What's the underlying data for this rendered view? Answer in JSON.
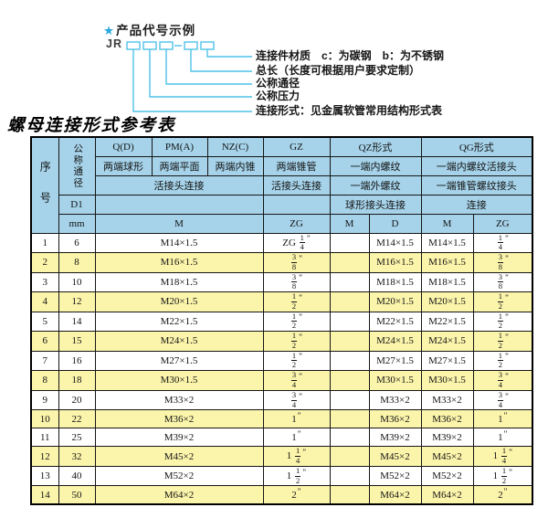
{
  "diagram": {
    "star": "★",
    "heading": "产品代号示例",
    "code_prefix": "JR",
    "labels": [
      "连接件材质　c：为碳钢　b：为不锈钢",
      "总长（长度可根据用户要求定制）",
      "公称通径",
      "公称压力",
      "连接形式：见金属软管常用结构形式表"
    ]
  },
  "table": {
    "title": "螺母连接形式参考表",
    "corner": {
      "row_label": "序号",
      "dn_label": "公称通径",
      "d1": "D1",
      "unit": "mm"
    },
    "groups": {
      "q": {
        "name": "Q(D)",
        "ends": "两端球形"
      },
      "pm": {
        "name": "PM(A)",
        "ends": "两端平面"
      },
      "nz": {
        "name": "NZ(C)",
        "ends": "两端内锥"
      },
      "qpn_conn": "活接头连接",
      "qpn_unit": "M",
      "gz": {
        "name": "GZ",
        "ends": "两端锥管",
        "conn": "活接头连接",
        "unit": "ZG"
      },
      "qz": {
        "name": "QZ形式",
        "row2": "一端内螺纹",
        "row3": "一端外螺纹",
        "row4": "球形接头连接",
        "unit_m": "M",
        "unit_d": "D"
      },
      "qg": {
        "name": "QG形式",
        "row2": "一端内螺纹活接头",
        "row3": "一端锥管螺纹接头",
        "row4": "连接",
        "unit_m": "M",
        "unit_zg": "ZG"
      }
    },
    "rows": [
      [
        "1",
        "6",
        "M14×1.5",
        "ZG 1/4\"",
        "",
        "M14×1.5",
        "M14×1.5",
        "1/4\""
      ],
      [
        "2",
        "8",
        "M16×1.5",
        "3/8\"",
        "",
        "M16×1.5",
        "M16×1.5",
        "3/8\""
      ],
      [
        "3",
        "10",
        "M18×1.5",
        "3/8\"",
        "",
        "M18×1.5",
        "M18×1.5",
        "3/8\""
      ],
      [
        "4",
        "12",
        "M20×1.5",
        "1/2\"",
        "",
        "M20×1.5",
        "M20×1.5",
        "1/2\""
      ],
      [
        "5",
        "14",
        "M22×1.5",
        "1/2\"",
        "",
        "M22×1.5",
        "M22×1.5",
        "1/2\""
      ],
      [
        "6",
        "15",
        "M24×1.5",
        "1/2\"",
        "",
        "M24×1.5",
        "M24×1.5",
        "1/2\""
      ],
      [
        "7",
        "16",
        "M27×1.5",
        "1/2\"",
        "",
        "M27×1.5",
        "M27×1.5",
        "1/2\""
      ],
      [
        "8",
        "18",
        "M30×1.5",
        "3/4\"",
        "",
        "M30×1.5",
        "M30×1.5",
        "3/4\""
      ],
      [
        "9",
        "20",
        "M33×2",
        "3/4\"",
        "",
        "M33×2",
        "M33×2",
        "3/4\""
      ],
      [
        "10",
        "22",
        "M36×2",
        "1\"",
        "",
        "M36×2",
        "M36×2",
        "1\""
      ],
      [
        "11",
        "25",
        "M39×2",
        "1\"",
        "",
        "M39×2",
        "M39×2",
        "1\""
      ],
      [
        "12",
        "32",
        "M45×2",
        "1 1/4\"",
        "",
        "M45×2",
        "M45×2",
        "1 1/4\""
      ],
      [
        "13",
        "40",
        "M52×2",
        "1 1/2\"",
        "",
        "M52×2",
        "M52×2",
        "1 1/2\""
      ],
      [
        "14",
        "50",
        "M64×2",
        "2\"",
        "",
        "M64×2",
        "M64×2",
        "2\""
      ]
    ]
  },
  "colors": {
    "header_bg": "#a6d3ea",
    "alt_row_bg": "#fbf4ab",
    "diagram_line": "#4fc1ea",
    "star": "#29aadf",
    "grid": "#161616"
  }
}
